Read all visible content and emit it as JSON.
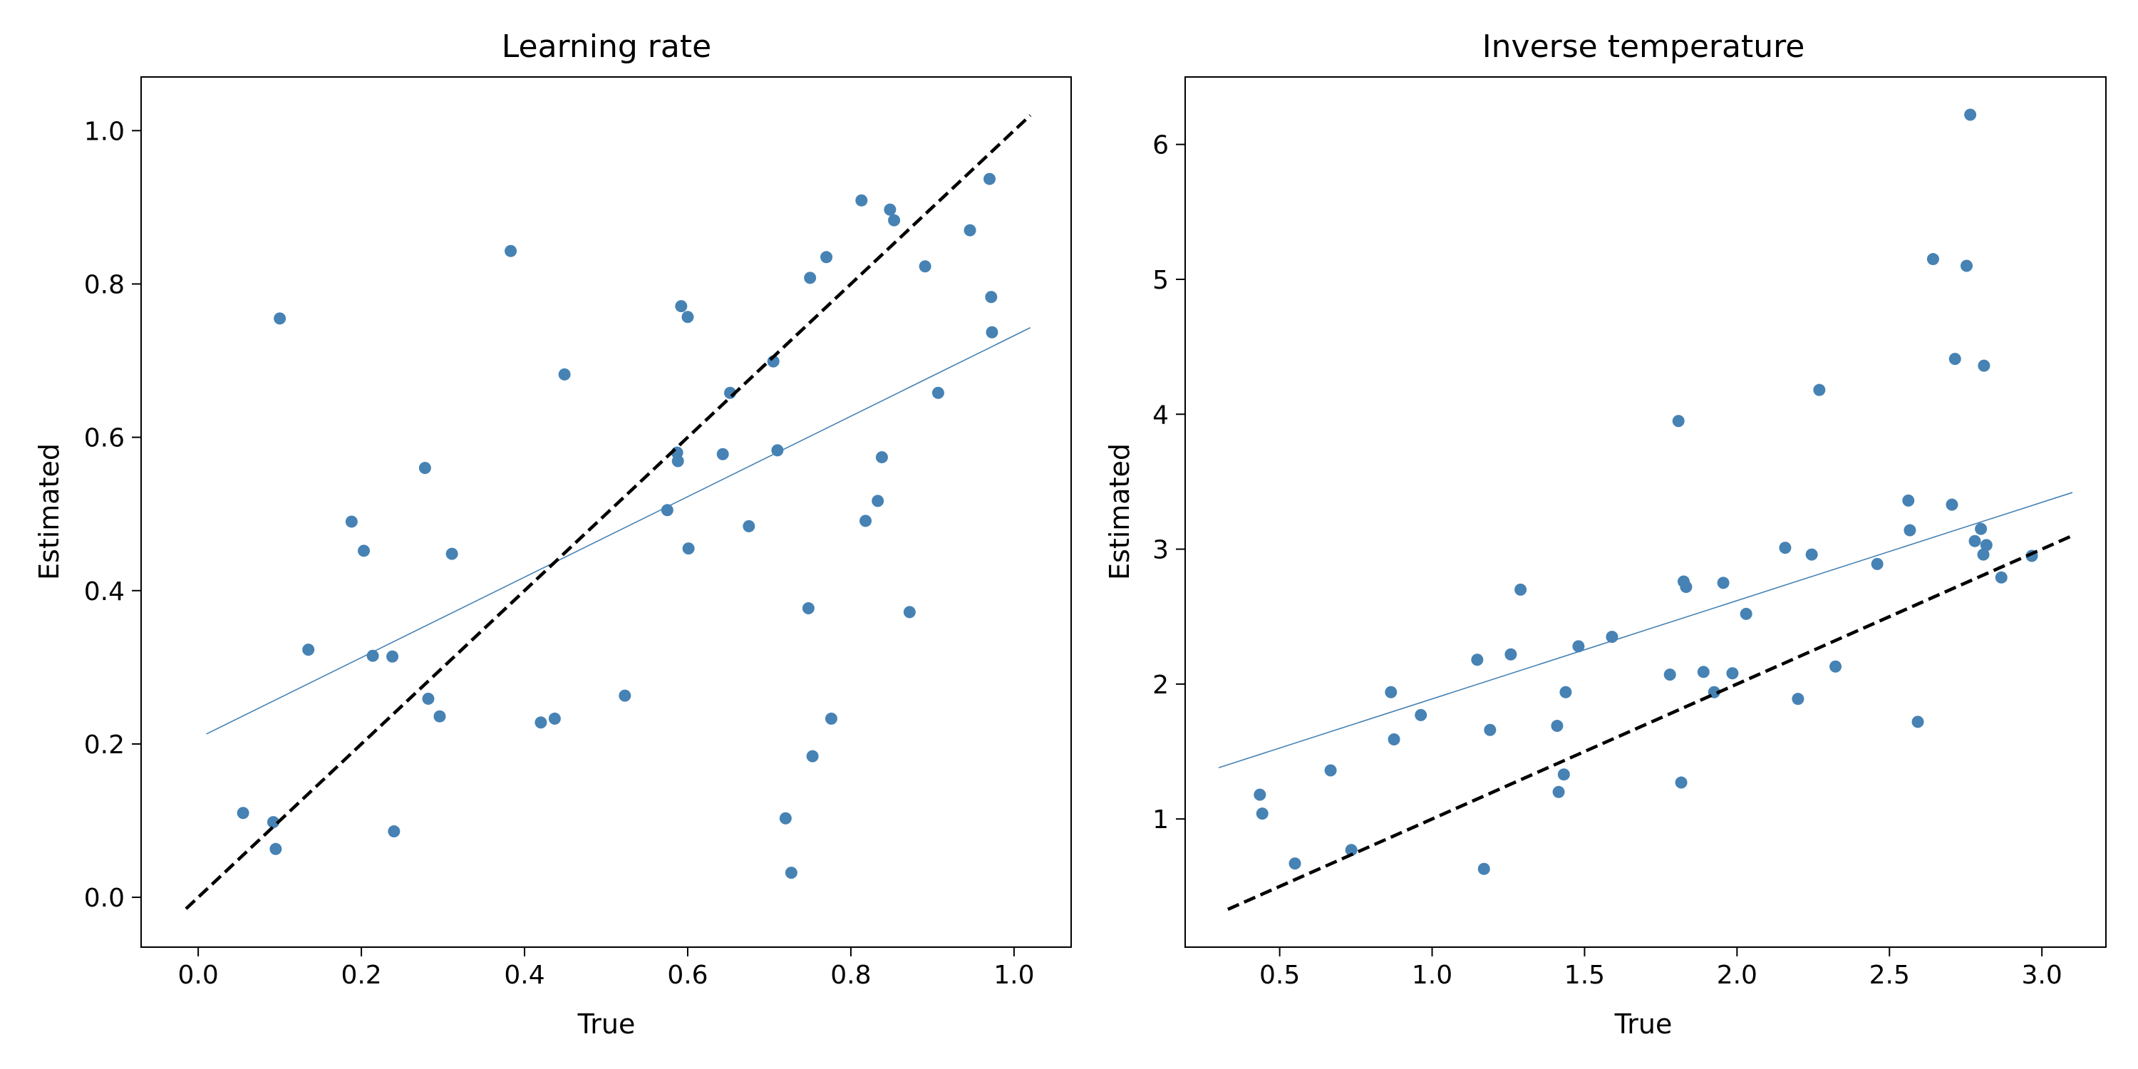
{
  "colors": {
    "points": "#4682b4",
    "fit_line": "#4682b4",
    "identity_line": "#000000"
  },
  "chart_data": [
    {
      "type": "scatter",
      "title": "Learning rate",
      "xlabel": "True",
      "ylabel": "Estimated",
      "xlim": [
        -0.07,
        1.07
      ],
      "ylim": [
        -0.065,
        1.07
      ],
      "xticks": [
        "0.0",
        "0.2",
        "0.4",
        "0.6",
        "0.8",
        "1.0"
      ],
      "yticks": [
        "0.0",
        "0.2",
        "0.4",
        "0.6",
        "0.8",
        "1.0"
      ],
      "grid": false,
      "identity_line": {
        "style": "dashed",
        "x": [
          -0.015,
          1.02
        ],
        "y": [
          -0.015,
          1.02
        ]
      },
      "fit_line": {
        "x": [
          0.01,
          1.02
        ],
        "y": [
          0.213,
          0.743
        ]
      },
      "points": [
        {
          "x": 0.055,
          "y": 0.11
        },
        {
          "x": 0.092,
          "y": 0.098
        },
        {
          "x": 0.095,
          "y": 0.063
        },
        {
          "x": 0.1,
          "y": 0.755
        },
        {
          "x": 0.135,
          "y": 0.323
        },
        {
          "x": 0.188,
          "y": 0.49
        },
        {
          "x": 0.203,
          "y": 0.452
        },
        {
          "x": 0.214,
          "y": 0.315
        },
        {
          "x": 0.238,
          "y": 0.314
        },
        {
          "x": 0.24,
          "y": 0.086
        },
        {
          "x": 0.278,
          "y": 0.56
        },
        {
          "x": 0.282,
          "y": 0.259
        },
        {
          "x": 0.296,
          "y": 0.236
        },
        {
          "x": 0.311,
          "y": 0.448
        },
        {
          "x": 0.383,
          "y": 0.843
        },
        {
          "x": 0.42,
          "y": 0.228
        },
        {
          "x": 0.437,
          "y": 0.233
        },
        {
          "x": 0.449,
          "y": 0.682
        },
        {
          "x": 0.523,
          "y": 0.263
        },
        {
          "x": 0.575,
          "y": 0.505
        },
        {
          "x": 0.587,
          "y": 0.58
        },
        {
          "x": 0.588,
          "y": 0.569
        },
        {
          "x": 0.592,
          "y": 0.771
        },
        {
          "x": 0.6,
          "y": 0.757
        },
        {
          "x": 0.601,
          "y": 0.455
        },
        {
          "x": 0.643,
          "y": 0.578
        },
        {
          "x": 0.652,
          "y": 0.658
        },
        {
          "x": 0.675,
          "y": 0.484
        },
        {
          "x": 0.705,
          "y": 0.699
        },
        {
          "x": 0.71,
          "y": 0.583
        },
        {
          "x": 0.72,
          "y": 0.103
        },
        {
          "x": 0.727,
          "y": 0.032
        },
        {
          "x": 0.748,
          "y": 0.377
        },
        {
          "x": 0.75,
          "y": 0.808
        },
        {
          "x": 0.753,
          "y": 0.184
        },
        {
          "x": 0.77,
          "y": 0.835
        },
        {
          "x": 0.776,
          "y": 0.233
        },
        {
          "x": 0.813,
          "y": 0.909
        },
        {
          "x": 0.818,
          "y": 0.491
        },
        {
          "x": 0.833,
          "y": 0.517
        },
        {
          "x": 0.838,
          "y": 0.574
        },
        {
          "x": 0.848,
          "y": 0.897
        },
        {
          "x": 0.853,
          "y": 0.883
        },
        {
          "x": 0.872,
          "y": 0.372
        },
        {
          "x": 0.891,
          "y": 0.823
        },
        {
          "x": 0.907,
          "y": 0.658
        },
        {
          "x": 0.946,
          "y": 0.87
        },
        {
          "x": 0.97,
          "y": 0.937
        },
        {
          "x": 0.972,
          "y": 0.783
        },
        {
          "x": 0.973,
          "y": 0.737
        }
      ]
    },
    {
      "type": "scatter",
      "title": "Inverse temperature",
      "xlabel": "True",
      "ylabel": "Estimated",
      "xlim": [
        0.19,
        3.21
      ],
      "ylim": [
        0.05,
        6.5
      ],
      "xticks": [
        "0.5",
        "1.0",
        "1.5",
        "2.0",
        "2.5",
        "3.0"
      ],
      "yticks": [
        "1",
        "2",
        "3",
        "4",
        "5",
        "6"
      ],
      "grid": false,
      "identity_line": {
        "style": "dashed",
        "x": [
          0.33,
          3.1
        ],
        "y": [
          0.33,
          3.1
        ]
      },
      "fit_line": {
        "x": [
          0.3,
          3.1
        ],
        "y": [
          1.38,
          3.42
        ]
      },
      "points": [
        {
          "x": 0.435,
          "y": 1.18
        },
        {
          "x": 0.443,
          "y": 1.04
        },
        {
          "x": 0.55,
          "y": 0.67
        },
        {
          "x": 0.667,
          "y": 1.36
        },
        {
          "x": 0.735,
          "y": 0.77
        },
        {
          "x": 0.865,
          "y": 1.94
        },
        {
          "x": 0.875,
          "y": 1.59
        },
        {
          "x": 0.963,
          "y": 1.77
        },
        {
          "x": 1.148,
          "y": 2.18
        },
        {
          "x": 1.17,
          "y": 0.63
        },
        {
          "x": 1.19,
          "y": 1.66
        },
        {
          "x": 1.258,
          "y": 2.22
        },
        {
          "x": 1.29,
          "y": 2.7
        },
        {
          "x": 1.41,
          "y": 1.69
        },
        {
          "x": 1.415,
          "y": 1.2
        },
        {
          "x": 1.432,
          "y": 1.33
        },
        {
          "x": 1.438,
          "y": 1.94
        },
        {
          "x": 1.48,
          "y": 2.28
        },
        {
          "x": 1.59,
          "y": 2.35
        },
        {
          "x": 1.78,
          "y": 2.07
        },
        {
          "x": 1.808,
          "y": 3.95
        },
        {
          "x": 1.817,
          "y": 1.27
        },
        {
          "x": 1.825,
          "y": 2.76
        },
        {
          "x": 1.833,
          "y": 2.72
        },
        {
          "x": 1.89,
          "y": 2.09
        },
        {
          "x": 1.925,
          "y": 1.94
        },
        {
          "x": 1.955,
          "y": 2.75
        },
        {
          "x": 1.985,
          "y": 2.08
        },
        {
          "x": 2.03,
          "y": 2.52
        },
        {
          "x": 2.158,
          "y": 3.01
        },
        {
          "x": 2.2,
          "y": 1.89
        },
        {
          "x": 2.245,
          "y": 2.96
        },
        {
          "x": 2.27,
          "y": 4.18
        },
        {
          "x": 2.323,
          "y": 2.13
        },
        {
          "x": 2.46,
          "y": 2.89
        },
        {
          "x": 2.562,
          "y": 3.36
        },
        {
          "x": 2.567,
          "y": 3.14
        },
        {
          "x": 2.593,
          "y": 1.72
        },
        {
          "x": 2.643,
          "y": 5.15
        },
        {
          "x": 2.705,
          "y": 3.33
        },
        {
          "x": 2.715,
          "y": 4.41
        },
        {
          "x": 2.753,
          "y": 5.1
        },
        {
          "x": 2.765,
          "y": 6.22
        },
        {
          "x": 2.78,
          "y": 3.06
        },
        {
          "x": 2.8,
          "y": 3.15
        },
        {
          "x": 2.808,
          "y": 2.96
        },
        {
          "x": 2.81,
          "y": 4.36
        },
        {
          "x": 2.818,
          "y": 3.03
        },
        {
          "x": 2.867,
          "y": 2.79
        },
        {
          "x": 2.967,
          "y": 2.95
        }
      ]
    }
  ]
}
